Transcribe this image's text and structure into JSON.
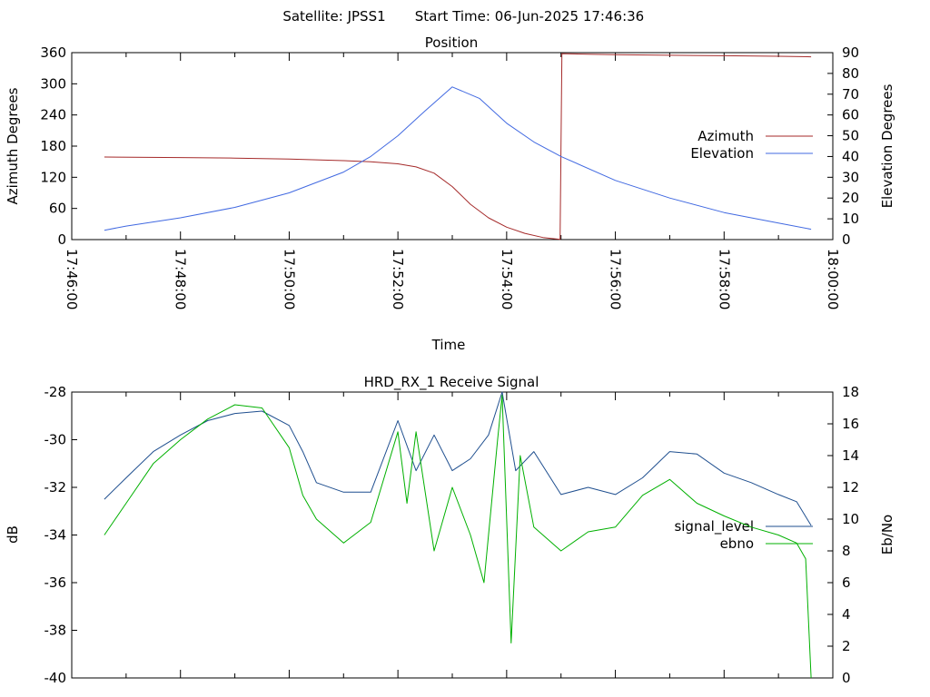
{
  "header": {
    "satellite": "Satellite: JPSS1",
    "start_time": "Start Time: 06-Jun-2025 17:46:36"
  },
  "colors": {
    "azimuth": "#a52a2a",
    "elevation": "#4169e1",
    "signal_level": "#1f4f8f",
    "ebno": "#00b000",
    "axes": "#000000"
  },
  "chart_data": [
    {
      "type": "line",
      "title": "Position",
      "xlabel": "Time",
      "ylabel": "Azimuth Degrees",
      "y2label": "Elevation Degrees",
      "xlim": [
        "17:46:00",
        "18:00:00"
      ],
      "ylim": [
        0,
        360
      ],
      "y2lim": [
        0,
        90
      ],
      "x_ticks": [
        "17:46:00",
        "17:48:00",
        "17:50:00",
        "17:52:00",
        "17:54:00",
        "17:56:00",
        "17:58:00",
        "18:00:00"
      ],
      "y_ticks": [
        "0",
        "60",
        "120",
        "180",
        "240",
        "300",
        "360"
      ],
      "y2_ticks": [
        "0",
        "10",
        "20",
        "30",
        "40",
        "50",
        "60",
        "70",
        "80",
        "90"
      ],
      "legend_position": "right",
      "series": [
        {
          "name": "Azimuth",
          "axis": "y",
          "x": [
            "17:46:36",
            "17:48:00",
            "17:49:00",
            "17:50:00",
            "17:51:00",
            "17:51:30",
            "17:52:00",
            "17:52:20",
            "17:52:40",
            "17:53:00",
            "17:53:20",
            "17:53:40",
            "17:54:00",
            "17:54:20",
            "17:54:40",
            "17:54:59",
            "17:55:01",
            "17:55:30",
            "17:56:00",
            "17:57:00",
            "17:58:00",
            "17:59:00",
            "17:59:36"
          ],
          "values": [
            159,
            158,
            157,
            155,
            152,
            150,
            146,
            140,
            128,
            102,
            68,
            42,
            24,
            12,
            4,
            0.5,
            358,
            357,
            356,
            355,
            354,
            353,
            352
          ]
        },
        {
          "name": "Elevation",
          "axis": "y2",
          "x": [
            "17:46:36",
            "17:47:00",
            "17:48:00",
            "17:49:00",
            "17:50:00",
            "17:51:00",
            "17:51:30",
            "17:52:00",
            "17:52:30",
            "17:53:00",
            "17:53:30",
            "17:54:00",
            "17:54:30",
            "17:55:00",
            "17:56:00",
            "17:57:00",
            "17:58:00",
            "17:59:00",
            "17:59:36"
          ],
          "values": [
            4.5,
            6.5,
            10.5,
            15.5,
            22.5,
            32.5,
            40,
            50,
            62,
            73.5,
            68,
            56,
            47,
            40,
            28.5,
            20,
            13,
            8,
            5
          ]
        }
      ]
    },
    {
      "type": "line",
      "title": "HRD_RX_1 Receive Signal",
      "xlabel": "",
      "ylabel": "dB",
      "y2label": "Eb/No",
      "xlim": [
        "17:46:00",
        "18:00:00"
      ],
      "ylim": [
        -40,
        -28
      ],
      "y2lim": [
        0,
        18
      ],
      "y_ticks": [
        "-40",
        "-38",
        "-36",
        "-34",
        "-32",
        "-30",
        "-28"
      ],
      "y2_ticks": [
        "0",
        "2",
        "4",
        "6",
        "8",
        "10",
        "12",
        "14",
        "16",
        "18"
      ],
      "legend_position": "right",
      "series": [
        {
          "name": "signal_level",
          "axis": "y",
          "x": [
            "17:46:36",
            "17:47:00",
            "17:47:30",
            "17:48:00",
            "17:48:30",
            "17:49:00",
            "17:49:30",
            "17:50:00",
            "17:50:15",
            "17:50:30",
            "17:51:00",
            "17:51:30",
            "17:52:00",
            "17:52:20",
            "17:52:40",
            "17:53:00",
            "17:53:20",
            "17:53:40",
            "17:53:55",
            "17:54:10",
            "17:54:30",
            "17:55:00",
            "17:55:30",
            "17:56:00",
            "17:56:30",
            "17:57:00",
            "17:57:30",
            "17:58:00",
            "17:58:30",
            "17:59:00",
            "17:59:20",
            "17:59:36"
          ],
          "values": [
            -32.5,
            -31.6,
            -30.5,
            -29.8,
            -29.2,
            -28.9,
            -28.8,
            -29.4,
            -30.5,
            -31.8,
            -32.2,
            -32.2,
            -29.2,
            -31.3,
            -29.8,
            -31.3,
            -30.8,
            -29.8,
            -28.0,
            -31.3,
            -30.5,
            -32.3,
            -32.0,
            -32.3,
            -31.6,
            -30.5,
            -30.6,
            -31.4,
            -31.8,
            -32.3,
            -32.6,
            -33.6
          ]
        },
        {
          "name": "ebno",
          "axis": "y2",
          "x": [
            "17:46:36",
            "17:47:00",
            "17:47:30",
            "17:48:00",
            "17:48:30",
            "17:49:00",
            "17:49:30",
            "17:50:00",
            "17:50:15",
            "17:50:30",
            "17:51:00",
            "17:51:30",
            "17:52:00",
            "17:52:10",
            "17:52:20",
            "17:52:40",
            "17:53:00",
            "17:53:20",
            "17:53:35",
            "17:53:50",
            "17:53:55",
            "17:54:05",
            "17:54:15",
            "17:54:30",
            "17:55:00",
            "17:55:30",
            "17:56:00",
            "17:56:30",
            "17:57:00",
            "17:57:30",
            "17:58:00",
            "17:58:30",
            "17:59:00",
            "17:59:20",
            "17:59:30",
            "17:59:36"
          ],
          "values": [
            9.0,
            11.0,
            13.5,
            15.0,
            16.3,
            17.2,
            17.0,
            14.5,
            11.5,
            10.0,
            8.5,
            9.8,
            15.5,
            11.0,
            15.5,
            8.0,
            12.0,
            9.0,
            6.0,
            15.0,
            17.8,
            2.2,
            14.0,
            9.5,
            8.0,
            9.2,
            9.5,
            11.5,
            12.5,
            11.0,
            10.2,
            9.5,
            9.0,
            8.5,
            7.5,
            0.0
          ]
        }
      ]
    }
  ]
}
